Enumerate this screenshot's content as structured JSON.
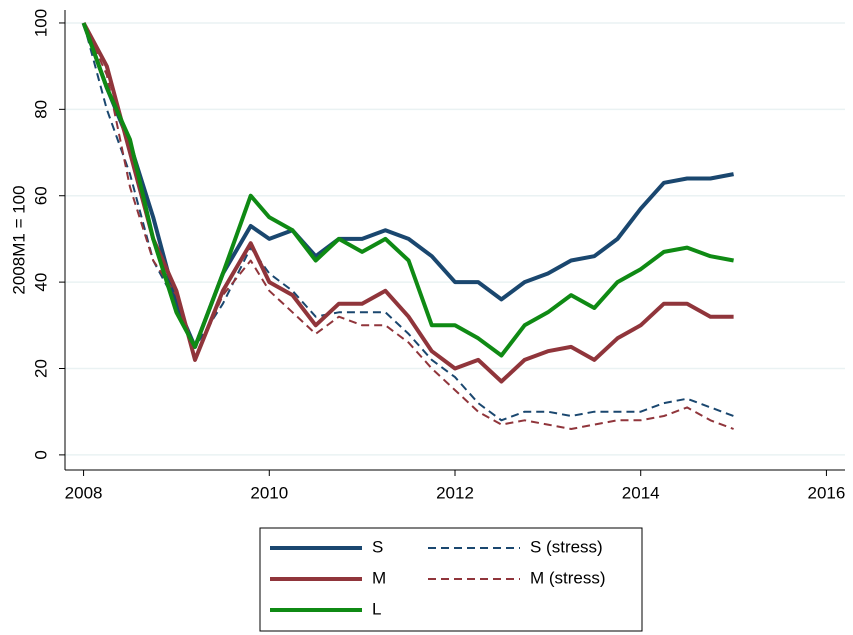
{
  "chart_data": {
    "type": "line",
    "y_label": "2008M1 = 100",
    "x": [
      2008.0,
      2008.25,
      2008.5,
      2008.75,
      2009.0,
      2009.2,
      2009.5,
      2009.8,
      2010.0,
      2010.25,
      2010.5,
      2010.75,
      2011.0,
      2011.25,
      2011.5,
      2011.75,
      2012.0,
      2012.25,
      2012.5,
      2012.75,
      2013.0,
      2013.25,
      2013.5,
      2013.75,
      2014.0,
      2014.25,
      2014.5,
      2014.75,
      2015.0
    ],
    "series": [
      {
        "name": "S",
        "color": "#1a476f",
        "line_style": "solid",
        "values": [
          100,
          85,
          72,
          55,
          35,
          25,
          42,
          53,
          50,
          52,
          46,
          50,
          50,
          52,
          50,
          46,
          40,
          40,
          36,
          40,
          42,
          45,
          46,
          50,
          57,
          63,
          64,
          64,
          65
        ]
      },
      {
        "name": "S (stress)",
        "color": "#1a476f",
        "line_style": "dashed",
        "values": [
          100,
          80,
          65,
          45,
          35,
          25,
          35,
          48,
          42,
          38,
          32,
          33,
          33,
          33,
          28,
          22,
          18,
          12,
          8,
          10,
          10,
          9,
          10,
          10,
          10,
          12,
          13,
          11,
          9
        ]
      },
      {
        "name": "M",
        "color": "#90353b",
        "line_style": "solid",
        "values": [
          100,
          90,
          70,
          50,
          38,
          22,
          38,
          49,
          40,
          37,
          30,
          35,
          35,
          38,
          32,
          24,
          20,
          22,
          17,
          22,
          24,
          25,
          22,
          27,
          30,
          35,
          35,
          32,
          32
        ]
      },
      {
        "name": "M (stress)",
        "color": "#90353b",
        "line_style": "dashed",
        "values": [
          100,
          88,
          62,
          45,
          37,
          22,
          37,
          45,
          38,
          33,
          28,
          32,
          30,
          30,
          26,
          20,
          15,
          10,
          7,
          8,
          7,
          6,
          7,
          8,
          8,
          9,
          11,
          8,
          6
        ]
      },
      {
        "name": "L",
        "color": "#0f8a14",
        "line_style": "solid",
        "values": [
          100,
          85,
          73,
          50,
          33,
          25,
          42,
          60,
          55,
          52,
          45,
          50,
          47,
          50,
          45,
          30,
          30,
          27,
          23,
          30,
          33,
          37,
          34,
          40,
          43,
          47,
          48,
          46,
          45
        ]
      }
    ],
    "xlim": [
      2007.8,
      2016.2
    ],
    "xticks": [
      2008,
      2010,
      2012,
      2014,
      2016
    ],
    "ylim": [
      -3.5,
      103
    ],
    "yticks": [
      0,
      20,
      40,
      60,
      80,
      100
    ],
    "grid": true
  }
}
